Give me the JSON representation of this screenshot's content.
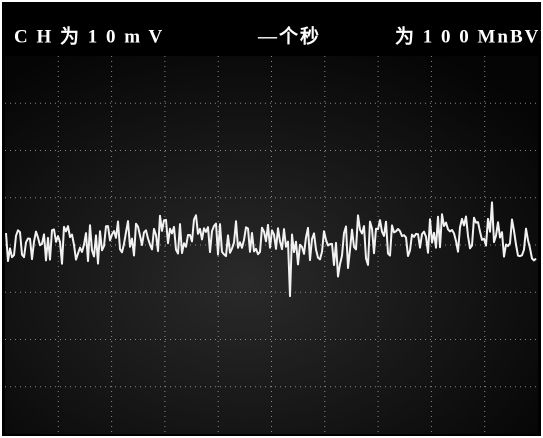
{
  "header": {
    "channel": "C H 为 1 0 m V",
    "time": "—个秒",
    "range": "为 1 0 0 MnBVR"
  }
}
